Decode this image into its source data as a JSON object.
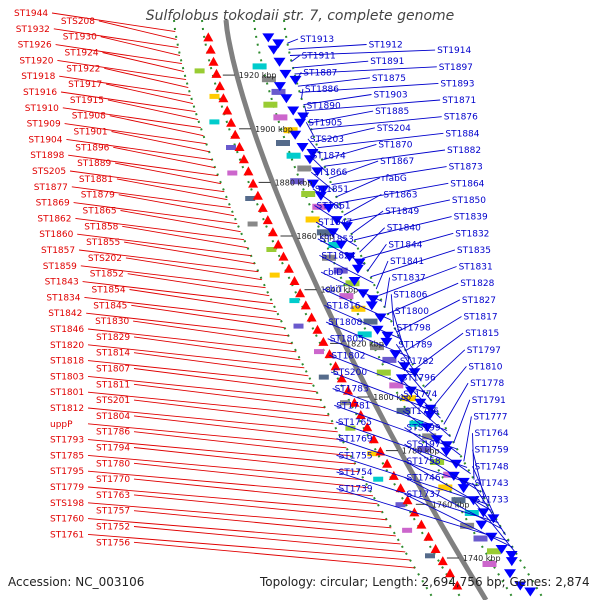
{
  "title": "Sulfolobus tokodaii str. 7, complete genome",
  "footer": {
    "accession": "Accession: NC_003106",
    "info": "Topology: circular; Length: 2,694,756 bp; Genes: 2,874"
  },
  "colors": {
    "left_label": "#e00000",
    "right_label": "#0000cc",
    "forward_gene": "#ff0000",
    "reverse_gene": "#0000ff",
    "backbone": "#808080",
    "ring_dots": "#2e8b2e"
  },
  "kbp_ticks": [
    "1920 kbp",
    "1900 kbp",
    "1880 kbp",
    "1860 kbp",
    "1840 kbp",
    "1820 kbp",
    "1800 kbp",
    "1780 kbp",
    "1760 kbp",
    "1740 kbp",
    "1720 kbp"
  ],
  "left_labels": [
    "ST1944",
    "STS208",
    "ST1932",
    "ST1930",
    "ST1926",
    "ST1924",
    "ST1920",
    "ST1922",
    "ST1918",
    "ST1917",
    "ST1916",
    "ST1915",
    "ST1910",
    "ST1908",
    "ST1909",
    "ST1901",
    "ST1904",
    "ST1896",
    "ST1898",
    "ST1889",
    "STS205",
    "ST1881",
    "ST1877",
    "ST1879",
    "ST1869",
    "ST1865",
    "ST1862",
    "ST1858",
    "ST1860",
    "ST1855",
    "ST1857",
    "STS202",
    "ST1859",
    "ST1852",
    "ST1843",
    "ST1854",
    "ST1834",
    "ST1845",
    "ST1842",
    "ST1830",
    "ST1846",
    "ST1829",
    "ST1820",
    "ST1814",
    "ST1818",
    "ST1807",
    "ST1803",
    "ST1811",
    "ST1801",
    "STS201",
    "ST1812",
    "ST1804",
    "uppP",
    "ST1786",
    "ST1793",
    "ST1794",
    "ST1785",
    "ST1780",
    "ST1795",
    "ST1770",
    "ST1779",
    "ST1763",
    "STS198",
    "ST1757",
    "ST1760",
    "ST1752",
    "ST1761",
    "ST1756"
  ],
  "right_labels": [
    "ST1913",
    "ST1912",
    "ST1914",
    "ST1911",
    "ST1891",
    "ST1897",
    "ST1887",
    "ST1875",
    "ST1893",
    "ST1886",
    "ST1903",
    "ST1871",
    "ST1890",
    "ST1885",
    "ST1876",
    "ST1905",
    "STS204",
    "ST1884",
    "STS203",
    "ST1870",
    "ST1882",
    "ST1874",
    "ST1867",
    "ST1873",
    "ST1866",
    "rfabG",
    "ST1864",
    "ST1851",
    "ST1863",
    "ST1850",
    "ST1861",
    "ST1849",
    "ST1839",
    "ST1847",
    "ST1840",
    "ST1832",
    "ST1853",
    "ST1844",
    "ST1835",
    "ST1824",
    "ST1841",
    "ST1831",
    "cbiD",
    "ST1837",
    "ST1828",
    "cbiT",
    "ST1806",
    "ST1827",
    "ST1816",
    "ST1800",
    "ST1817",
    "ST1808",
    "ST1798",
    "ST1815",
    "ST1805",
    "ST1789",
    "ST1797",
    "ST1802",
    "ST1782",
    "ST1810",
    "STS200",
    "ST1796",
    "ST1778",
    "ST1783",
    "ST1774",
    "ST1791",
    "ST1781",
    "ST1766",
    "ST1777",
    "ST1765",
    "STS199",
    "ST1764",
    "ST1769",
    "STS197",
    "ST1759",
    "ST1755",
    "ST1758",
    "ST1748",
    "ST1754",
    "ST1746",
    "ST1743",
    "ST1739",
    "ST1737",
    "ST1733"
  ]
}
